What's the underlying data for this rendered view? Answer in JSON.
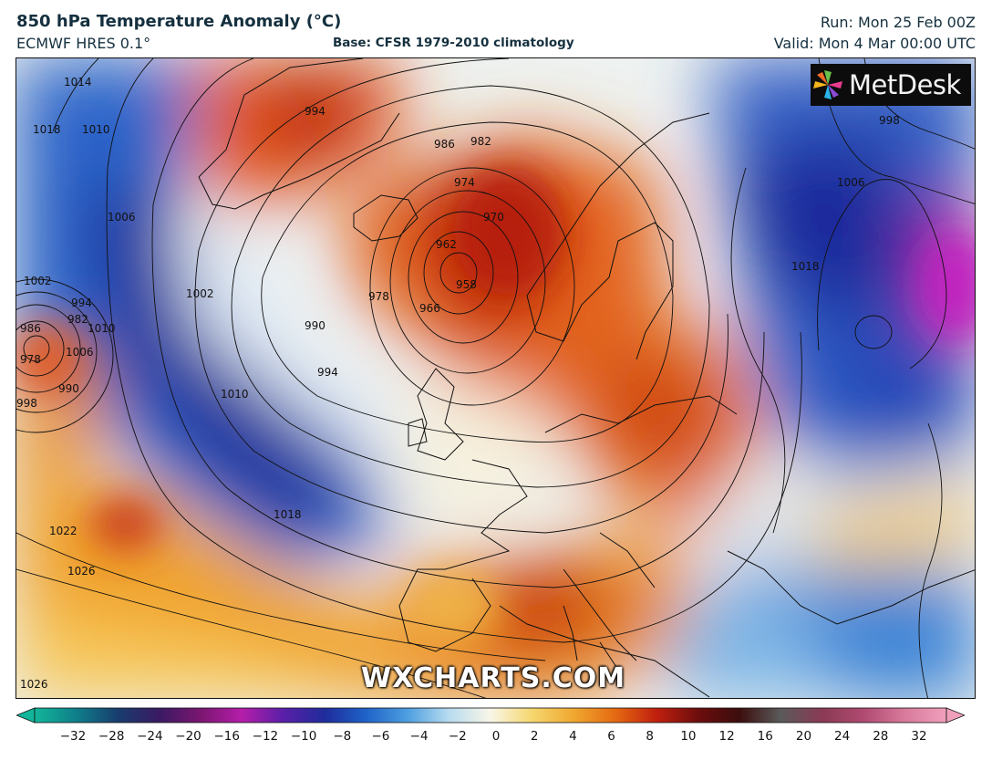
{
  "header": {
    "title": "850 hPa Temperature Anomaly (°C)",
    "model": "ECMWF HRES 0.1°",
    "base": "Base: CFSR 1979-2010 climatology",
    "run": "Run: Mon 25 Feb 00Z",
    "valid": "Valid: Mon 4 Mar 00:00 UTC"
  },
  "logo": {
    "text": "MetDesk",
    "icon": "metdesk-pinwheel-icon"
  },
  "watermark": "WXCHARTS.COM",
  "isobar_labels": [
    "994",
    "986",
    "982",
    "974",
    "970",
    "962",
    "958",
    "966",
    "978",
    "990",
    "994",
    "1002",
    "1010",
    "1018",
    "1022",
    "1026",
    "1014",
    "1018",
    "1010",
    "1006",
    "1002",
    "1010",
    "1006",
    "998",
    "990",
    "978",
    "986",
    "982",
    "994",
    "998",
    "1006",
    "1018",
    "1026"
  ],
  "colorbar": {
    "ticks": [
      "−32",
      "−28",
      "−24",
      "−20",
      "−16",
      "−12",
      "−10",
      "−8",
      "−6",
      "−4",
      "−2",
      "0",
      "2",
      "4",
      "6",
      "8",
      "10",
      "12",
      "16",
      "20",
      "24",
      "28",
      "32"
    ],
    "colors": [
      "#12b59a",
      "#0f7f8a",
      "#183d6e",
      "#3a1a63",
      "#7a1670",
      "#b41ea9",
      "#5a1fa8",
      "#1f2c9c",
      "#1f63c8",
      "#4e9fe0",
      "#b8dcef",
      "#f9f6e8",
      "#f5d76e",
      "#f0a830",
      "#e56a12",
      "#c0200e",
      "#6e0d0d",
      "#3c0d0d",
      "#5a5a5a",
      "#8a3a55",
      "#b04a70",
      "#d87a9c",
      "#f0a0bc"
    ]
  }
}
